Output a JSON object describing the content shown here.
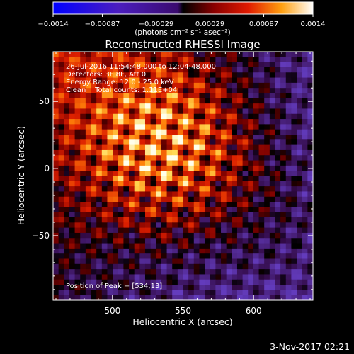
{
  "chart_data": {
    "type": "heatmap",
    "title": "Reconstructed RHESSI Image",
    "xlabel": "Heliocentric X (arcsec)",
    "ylabel": "Heliocentric Y (arcsec)",
    "xlim": [
      458,
      642
    ],
    "ylim": [
      -98,
      87
    ],
    "x_ticks": [
      500,
      550,
      600
    ],
    "y_ticks": [
      -50,
      0,
      50
    ],
    "colorbar": {
      "range": [
        -0.0014,
        0.0014
      ],
      "tick_values": [
        -0.0014,
        -0.00087,
        -0.00029,
        0.00029,
        0.00087,
        0.0014
      ],
      "tick_labels": [
        "−0.0014",
        "−0.00087",
        "−0.00029",
        "0.00029",
        "0.00087",
        "0.0014"
      ],
      "unit_label": "(photons cm⁻² s⁻¹ asec⁻²)"
    },
    "info_lines": [
      "26-Jul-2016 11:54:48.000 to 12:04:48.000",
      "Detectors: 3F 8F, Att 0",
      "Energy Range: 12.0 - 25.0 keV",
      "Clean    Total counts: 1.11E+04"
    ],
    "peak_label": "Position of Peak = [534,13]",
    "peak": {
      "x": 534,
      "y": 13
    },
    "timestamp": "3-Nov-2017 02:21"
  }
}
